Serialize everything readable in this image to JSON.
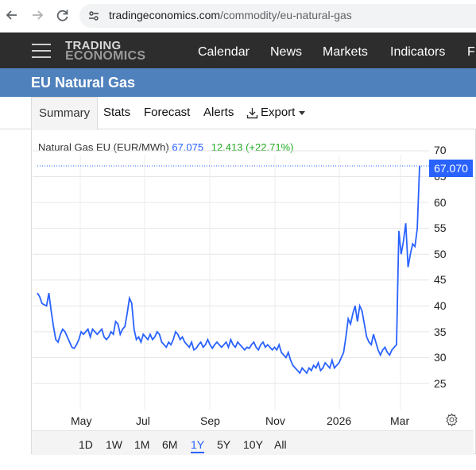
{
  "browser": {
    "url_domain": "tradingeconomics.com",
    "url_path": "/commodity/eu-natural-gas"
  },
  "header": {
    "logo_line1": "TRADING",
    "logo_line2": "ECONOMICS",
    "nav": [
      "Calendar",
      "News",
      "Markets",
      "Indicators",
      "F"
    ]
  },
  "page": {
    "title": "EU Natural Gas"
  },
  "tabs": {
    "summary": "Summary",
    "stats": "Stats",
    "forecast": "Forecast",
    "alerts": "Alerts",
    "export": "Export"
  },
  "quote": {
    "name": "Natural Gas EU (EUR/MWh)",
    "price": "67.075",
    "change": "12.413 (+22.71%)"
  },
  "last_price_label": "67.070",
  "ranges": [
    "1D",
    "1W",
    "1M",
    "6M",
    "1Y",
    "5Y",
    "10Y",
    "All"
  ],
  "selected_range": "1Y",
  "colors": {
    "accent": "#2962ff",
    "header_bg": "#2d2d2d",
    "title_bg": "#4f81bd",
    "positive": "#22aa22"
  },
  "icons": [
    "back-arrow-icon",
    "forward-arrow-icon",
    "reload-icon",
    "site-settings-icon",
    "hamburger-icon",
    "download-icon",
    "gear-icon"
  ],
  "chart_data": {
    "type": "line",
    "series": [
      {
        "name": "Natural Gas EU (EUR/MWh)",
        "values": [
          42.5,
          41.8,
          40.5,
          40.2,
          40.0,
          42.5,
          39.0,
          36.0,
          33.5,
          33.0,
          34.5,
          35.5,
          35.0,
          34.0,
          33.0,
          32.0,
          31.8,
          32.5,
          33.5,
          35.0,
          34.5,
          35.0,
          35.5,
          34.0,
          35.5,
          35.0,
          34.5,
          35.0,
          35.5,
          34.0,
          33.5,
          34.0,
          35.0,
          34.5,
          37.0,
          36.5,
          34.5,
          35.5,
          36.0,
          38.5,
          41.5,
          40.5,
          35.5,
          33.5,
          34.0,
          33.0,
          34.5,
          34.0,
          33.5,
          34.5,
          33.5,
          34.0,
          35.0,
          34.5,
          33.0,
          32.5,
          32.0,
          33.0,
          32.5,
          33.5,
          35.0,
          34.5,
          33.5,
          34.0,
          33.0,
          32.5,
          32.0,
          33.0,
          31.5,
          31.8,
          32.5,
          33.0,
          32.0,
          32.5,
          33.5,
          32.5,
          31.8,
          32.5,
          33.0,
          32.5,
          32.0,
          32.5,
          33.0,
          32.0,
          33.5,
          32.5,
          32.0,
          33.0,
          32.5,
          32.0,
          31.5,
          32.0,
          31.8,
          32.5,
          33.0,
          32.0,
          31.5,
          32.5,
          33.0,
          32.0,
          32.5,
          32.0,
          31.5,
          32.0,
          31.5,
          32.5,
          31.0,
          30.5,
          30.0,
          31.0,
          29.5,
          28.5,
          28.0,
          27.5,
          27.0,
          28.0,
          27.5,
          27.0,
          28.0,
          27.5,
          28.5,
          28.0,
          29.0,
          27.5,
          28.0,
          29.0,
          28.5,
          28.0,
          29.5,
          28.0,
          28.5,
          29.0,
          30.0,
          31.0,
          34.0,
          37.5,
          36.5,
          38.5,
          40.0,
          37.0,
          40.0,
          39.0,
          36.5,
          34.0,
          33.0,
          32.5,
          34.5,
          33.0,
          31.5,
          30.5,
          31.5,
          32.0,
          31.0,
          30.5,
          31.5,
          32.0,
          32.5,
          54.5,
          50.0,
          52.5,
          56.0,
          47.5,
          50.0,
          52.0,
          51.5,
          55.0,
          67.075
        ]
      }
    ],
    "x_ticks": [
      "May",
      "Jul",
      "Sep",
      "Nov",
      "2026",
      "Mar"
    ],
    "y_ticks": [
      "25",
      "30",
      "35",
      "40",
      "45",
      "50",
      "55",
      "60",
      "65",
      "70"
    ],
    "ylim": [
      20,
      71
    ],
    "grid": true
  }
}
